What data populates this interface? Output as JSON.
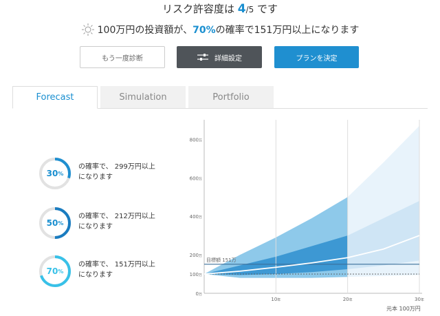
{
  "header": {
    "risk_prefix": "リスク許容度は ",
    "risk_num": "4",
    "risk_den": "/5",
    "risk_suffix": " です",
    "summary_prefix": "100万円の投資額が、",
    "summary_pct": "70%",
    "summary_suffix": "の確率で151万円以上になります",
    "icon": "sun-icon"
  },
  "buttons": {
    "retry": "もう一度診断",
    "settings": "詳細設定",
    "settings_icon": "sliders-icon",
    "decide": "プランを決定"
  },
  "tabs": [
    {
      "label": "Forecast",
      "active": true
    },
    {
      "label": "Simulation",
      "active": false
    },
    {
      "label": "Portfolio",
      "active": false
    }
  ],
  "probabilities": [
    {
      "pct": "30",
      "unit": "%",
      "value": 0.3,
      "line1": "の確率で、 299万円以上",
      "line2": "になります"
    },
    {
      "pct": "50",
      "unit": "%",
      "value": 0.5,
      "line1": "の確率で、 212万円以上",
      "line2": "になります"
    },
    {
      "pct": "70",
      "unit": "%",
      "value": 0.7,
      "line1": "の確率で、 151万円以上",
      "line2": "になります"
    }
  ],
  "colors": {
    "accent": "#1a8fd0",
    "ring_30": "#1f8fd0",
    "ring_50": "#1a7cc0",
    "ring_70": "#38c1e8",
    "ring_bg": "#e2e2e2"
  },
  "chart_data": {
    "type": "area",
    "x_ticks": [
      {
        "value": 10,
        "num": "10",
        "unit": "年"
      },
      {
        "value": 20,
        "num": "20",
        "unit": "年"
      },
      {
        "value": 30,
        "num": "30",
        "unit": "年"
      }
    ],
    "y_ticks": [
      {
        "value": 0,
        "num": "0",
        "unit": "万"
      },
      {
        "value": 100,
        "num": "100",
        "unit": "万"
      },
      {
        "value": 200,
        "num": "200",
        "unit": "万"
      },
      {
        "value": 400,
        "num": "400",
        "unit": "万"
      },
      {
        "value": 600,
        "num": "600",
        "unit": "万"
      },
      {
        "value": 800,
        "num": "800",
        "unit": "万"
      }
    ],
    "xlim": [
      0,
      30
    ],
    "ylim": [
      0,
      880
    ],
    "target": {
      "label": "目標額 151万",
      "value": 151
    },
    "principal": 100,
    "base_label": "元本 100万円",
    "median": [
      [
        0,
        100
      ],
      [
        5,
        115
      ],
      [
        10,
        135
      ],
      [
        15,
        158
      ],
      [
        20,
        185
      ],
      [
        25,
        230
      ],
      [
        30,
        300
      ]
    ],
    "band_inner": {
      "upper": [
        [
          0,
          100
        ],
        [
          5,
          145
        ],
        [
          10,
          190
        ],
        [
          15,
          245
        ],
        [
          20,
          300
        ],
        [
          25,
          390
        ],
        [
          30,
          480
        ]
      ],
      "lower": [
        [
          0,
          100
        ],
        [
          5,
          95
        ],
        [
          10,
          100
        ],
        [
          15,
          110
        ],
        [
          20,
          125
        ],
        [
          25,
          145
        ],
        [
          30,
          170
        ]
      ]
    },
    "band_outer": {
      "upper": [
        [
          0,
          100
        ],
        [
          5,
          200
        ],
        [
          10,
          290
        ],
        [
          15,
          390
        ],
        [
          20,
          500
        ],
        [
          25,
          680
        ],
        [
          30,
          870
        ]
      ],
      "lower": [
        [
          0,
          100
        ],
        [
          5,
          80
        ],
        [
          10,
          80
        ],
        [
          15,
          80
        ],
        [
          20,
          85
        ],
        [
          25,
          90
        ],
        [
          30,
          95
        ]
      ]
    }
  }
}
